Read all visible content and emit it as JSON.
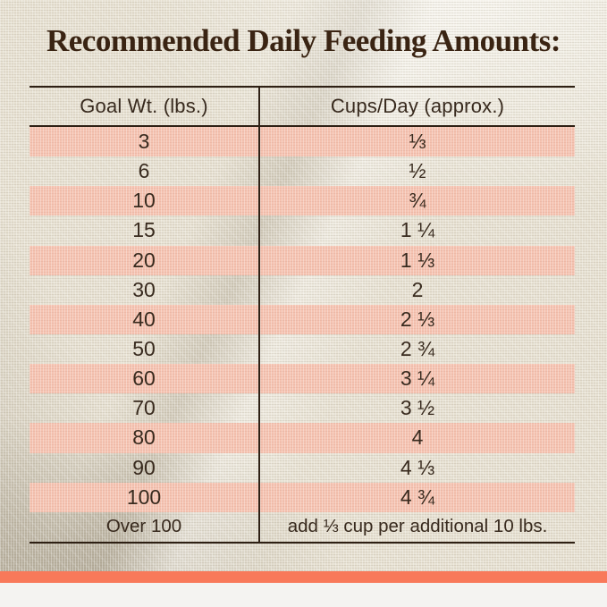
{
  "title": "Recommended Daily Feeding Amounts:",
  "chart_data": {
    "type": "table",
    "title": "Recommended Daily Feeding Amounts:",
    "columns": [
      "Goal Wt. (lbs.)",
      "Cups/Day (approx.)"
    ],
    "rows": [
      {
        "goal_wt": "3",
        "cups_per_day": "⅓"
      },
      {
        "goal_wt": "6",
        "cups_per_day": "½"
      },
      {
        "goal_wt": "10",
        "cups_per_day": "¾"
      },
      {
        "goal_wt": "15",
        "cups_per_day": "1 ¼"
      },
      {
        "goal_wt": "20",
        "cups_per_day": "1 ⅓"
      },
      {
        "goal_wt": "30",
        "cups_per_day": "2"
      },
      {
        "goal_wt": "40",
        "cups_per_day": "2 ⅓"
      },
      {
        "goal_wt": "50",
        "cups_per_day": "2 ¾"
      },
      {
        "goal_wt": "60",
        "cups_per_day": "3 ¼"
      },
      {
        "goal_wt": "70",
        "cups_per_day": "3 ½"
      },
      {
        "goal_wt": "80",
        "cups_per_day": "4"
      },
      {
        "goal_wt": "90",
        "cups_per_day": "4 ⅓"
      },
      {
        "goal_wt": "100",
        "cups_per_day": "4 ¾"
      },
      {
        "goal_wt": "Over 100",
        "cups_per_day": "add ⅓ cup per additional 10 lbs."
      }
    ],
    "layout_hints": {
      "striped_rows": "odd rows highlighted pink, starting with first data row",
      "column_divider": true,
      "rules": "horizontal rule above header, below header, and below last row"
    }
  },
  "colors": {
    "stripe_pink": "#f5c3b1",
    "accent_orange": "#f8795a",
    "fabric_beige": "#e7e1d2",
    "title_brown": "#3a2413",
    "text_brown": "#382a1e",
    "footer_gray": "#f4f3f1"
  }
}
